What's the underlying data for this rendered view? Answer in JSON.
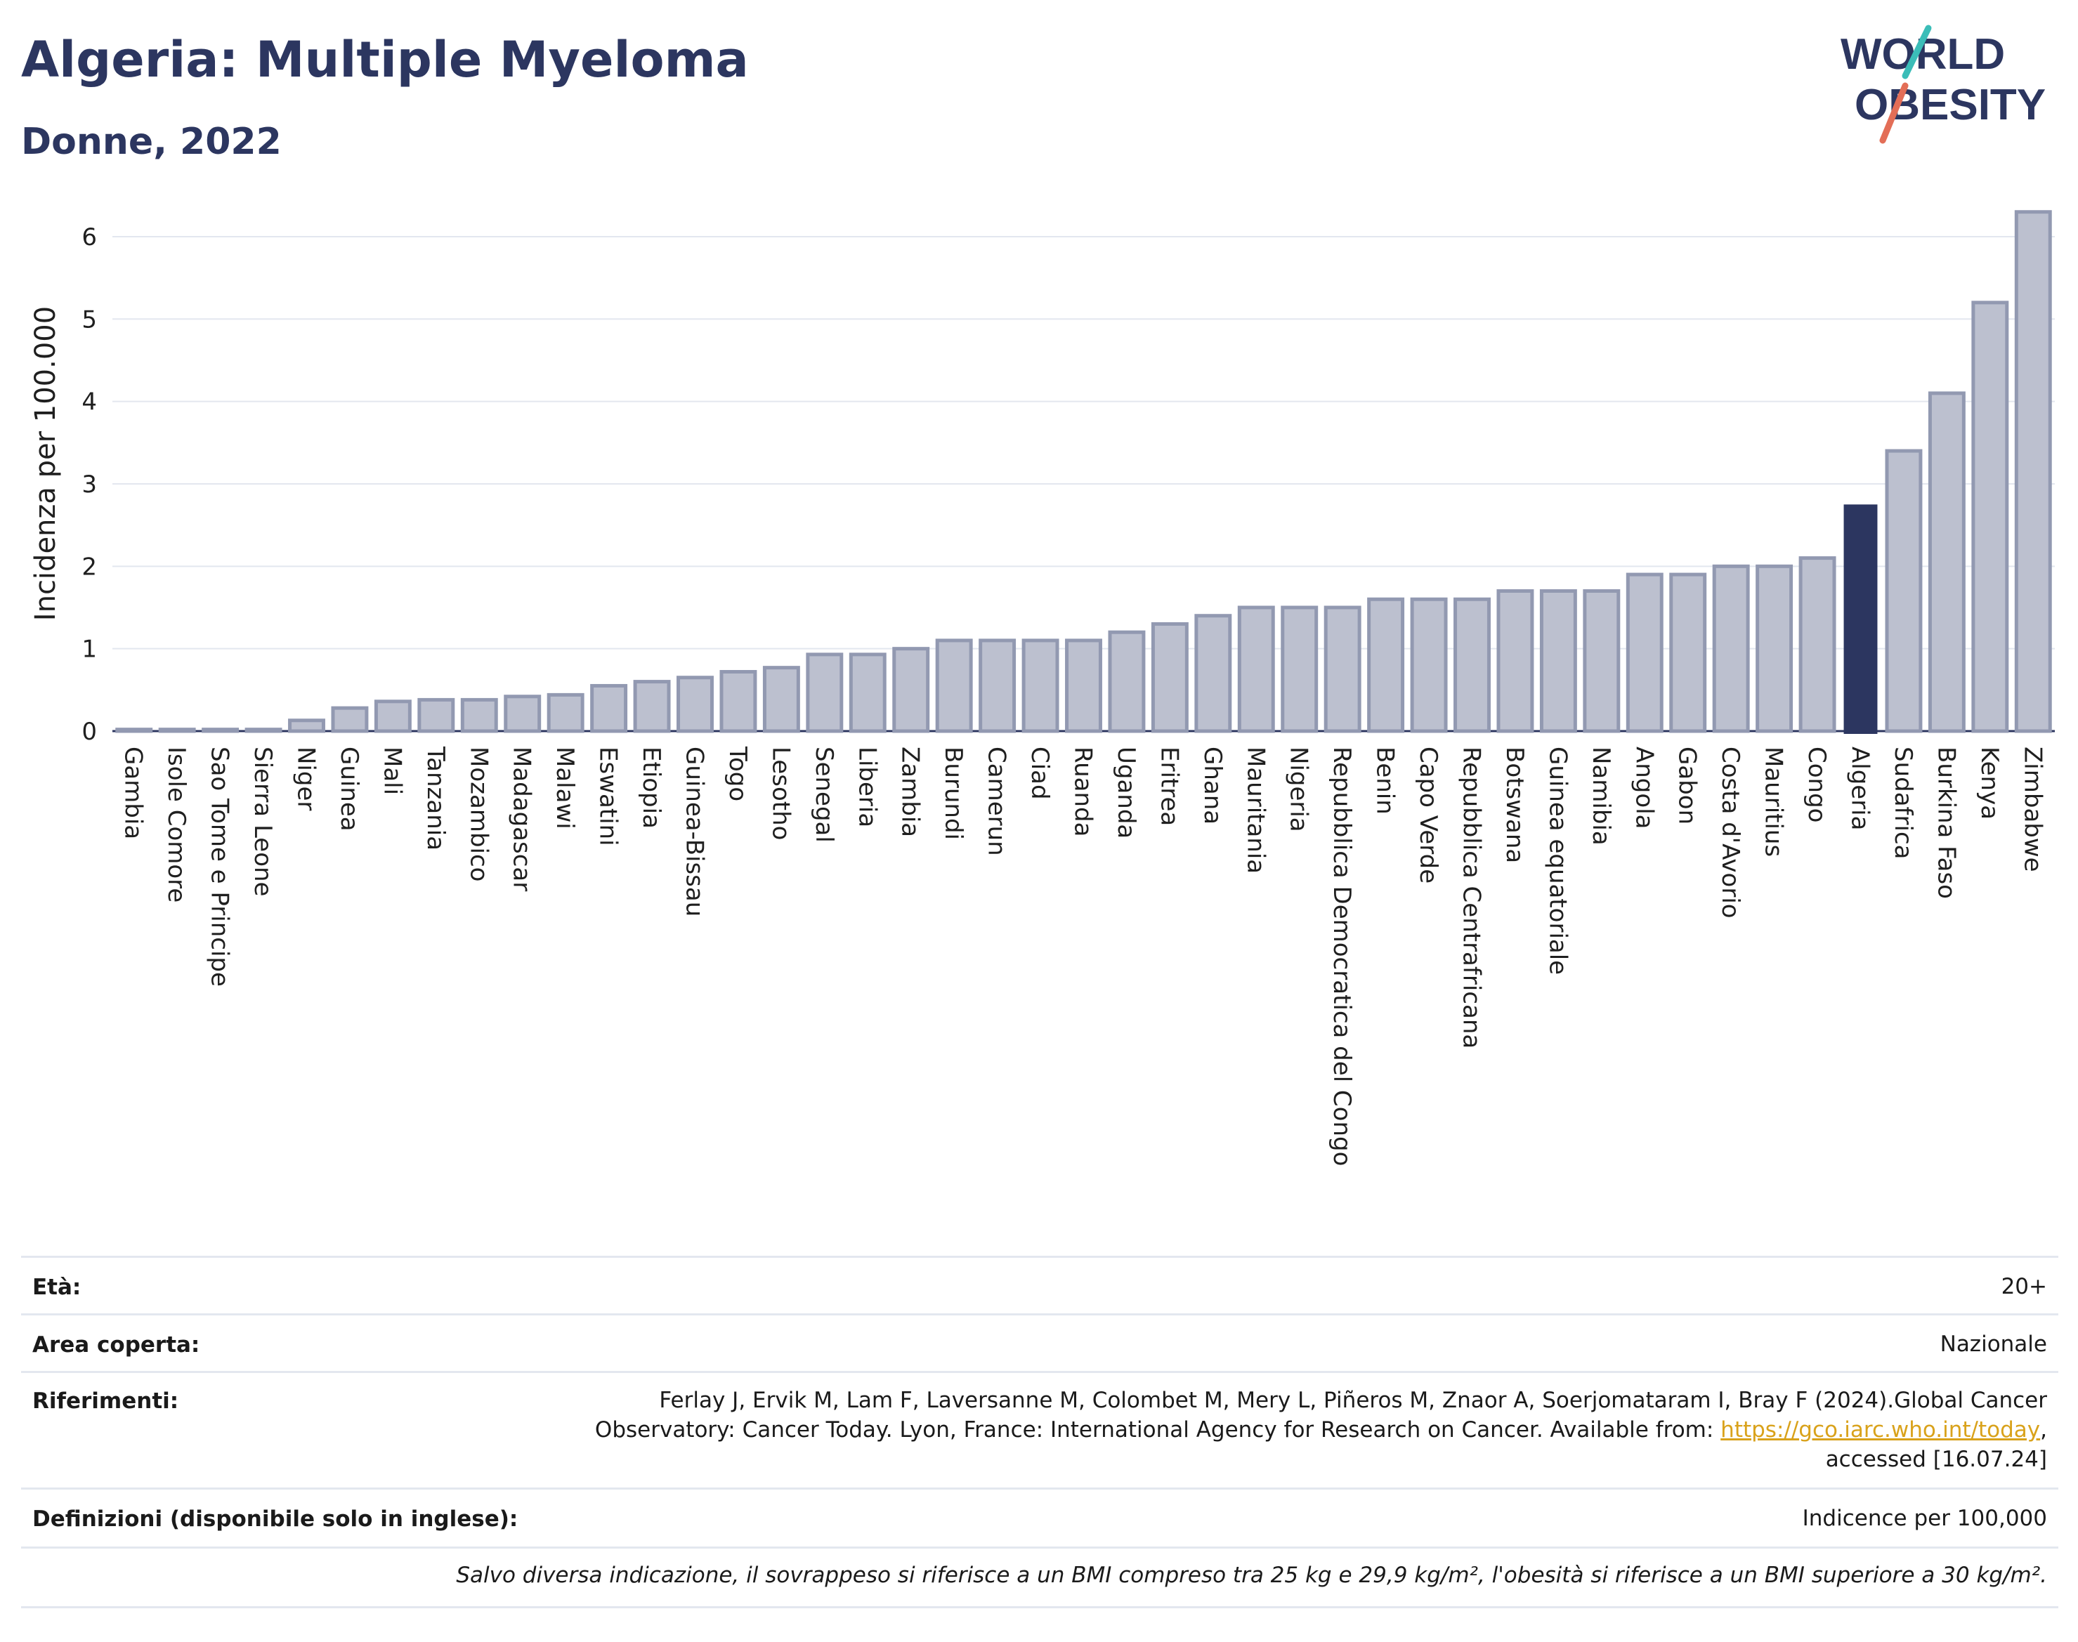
{
  "header": {
    "title": "Algeria: Multiple Myeloma",
    "subtitle": "Donne, 2022"
  },
  "logo": {
    "line1": "WORLD",
    "line2": "OBESITY"
  },
  "chart_data": {
    "type": "bar",
    "ylabel": "Incidenza per 100.000",
    "ylim": [
      0,
      6.4
    ],
    "yticks": [
      0,
      1,
      2,
      3,
      4,
      5,
      6
    ],
    "grid": true,
    "highlight": "Algeria",
    "colors": {
      "bar": "#bcc0cf",
      "bar_edge": "#9299b1",
      "highlight": "#2c3660"
    },
    "categories": [
      "Gambia",
      "Isole Comore",
      "Sao Tome e Principe",
      "Sierra Leone",
      "Niger",
      "Guinea",
      "Mali",
      "Tanzania",
      "Mozambico",
      "Madagascar",
      "Malawi",
      "Eswatini",
      "Etiopia",
      "Guinea-Bissau",
      "Togo",
      "Lesotho",
      "Senegal",
      "Liberia",
      "Zambia",
      "Burundi",
      "Camerun",
      "Ciad",
      "Ruanda",
      "Uganda",
      "Eritrea",
      "Ghana",
      "Mauritania",
      "Nigeria",
      "Repubblica Democratica del Congo",
      "Benin",
      "Capo Verde",
      "Repubblica Centrafricana",
      "Botswana",
      "Guinea equatoriale",
      "Namibia",
      "Angola",
      "Gabon",
      "Costa d'Avorio",
      "Mauritius",
      "Congo",
      "Algeria",
      "Sudafrica",
      "Burkina Faso",
      "Kenya",
      "Zimbabwe"
    ],
    "values": [
      0.02,
      0.02,
      0.02,
      0.02,
      0.13,
      0.28,
      0.36,
      0.38,
      0.38,
      0.42,
      0.44,
      0.55,
      0.6,
      0.65,
      0.72,
      0.77,
      0.93,
      0.93,
      1.0,
      1.1,
      1.1,
      1.1,
      1.1,
      1.2,
      1.3,
      1.4,
      1.5,
      1.5,
      1.5,
      1.6,
      1.6,
      1.6,
      1.7,
      1.7,
      1.7,
      1.9,
      1.9,
      2.0,
      2.0,
      2.1,
      2.75,
      3.4,
      4.1,
      5.2,
      6.3
    ]
  },
  "table": {
    "eta_label": "Età:",
    "eta_value": "20+",
    "area_label": "Area coperta:",
    "area_value": "Nazionale",
    "rif_label": "Riferimenti:",
    "rif_line1": "Ferlay J, Ervik M, Lam F, Laversanne M, Colombet M, Mery L, Piñeros M, Znaor A, Soerjomataram I, Bray F (2024).Global Cancer",
    "rif_line2": "Observatory: Cancer Today. Lyon, France: International Agency for Research on Cancer. Available from: ",
    "rif_link": "https://gco.iarc.who.int/today",
    "rif_line2_end": ",",
    "rif_line3": "accessed [16.07.24]",
    "def_label": "Definizioni (disponibile solo in inglese):",
    "def_value": "Indicence per 100,000",
    "note": "Salvo diversa indicazione, il sovrappeso si riferisce a un BMI compreso tra 25 kg e 29,9 kg/m², l'obesità si riferisce a un BMI superiore a 30 kg/m²."
  }
}
